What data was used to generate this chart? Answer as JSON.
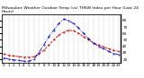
{
  "title": "Milwaukee Weather Outdoor Temp (vs) THSW Index per Hour (Last 24 Hours)",
  "hours": [
    0,
    1,
    2,
    3,
    4,
    5,
    6,
    7,
    8,
    9,
    10,
    11,
    12,
    13,
    14,
    15,
    16,
    17,
    18,
    19,
    20,
    21,
    22,
    23
  ],
  "temp": [
    28,
    26,
    25,
    24,
    23,
    23,
    24,
    28,
    34,
    42,
    50,
    57,
    62,
    65,
    64,
    60,
    55,
    50,
    45,
    42,
    39,
    36,
    34,
    32
  ],
  "thsw": [
    22,
    20,
    19,
    18,
    17,
    17,
    20,
    30,
    42,
    55,
    65,
    75,
    82,
    80,
    75,
    68,
    60,
    52,
    45,
    40,
    36,
    32,
    29,
    27
  ],
  "temp_color": "#cc0000",
  "thsw_color": "#0000cc",
  "bg_color": "#ffffff",
  "ylim": [
    15,
    90
  ],
  "yticks_right": [
    20,
    30,
    40,
    50,
    60,
    70,
    80
  ],
  "grid_color": "#888888",
  "xlabel_fontsize": 3.0,
  "ylabel_fontsize": 3.0,
  "title_fontsize": 3.2
}
